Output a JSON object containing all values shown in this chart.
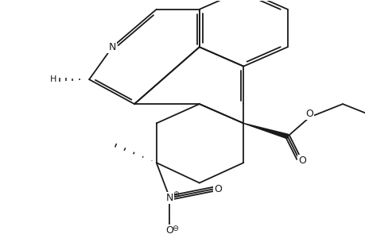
{
  "bg_color": "#ffffff",
  "line_color": "#1a1a1a",
  "figsize": [
    4.6,
    3.0
  ],
  "dpi": 100,
  "xlim": [
    0,
    46
  ],
  "ylim": [
    0,
    30
  ]
}
